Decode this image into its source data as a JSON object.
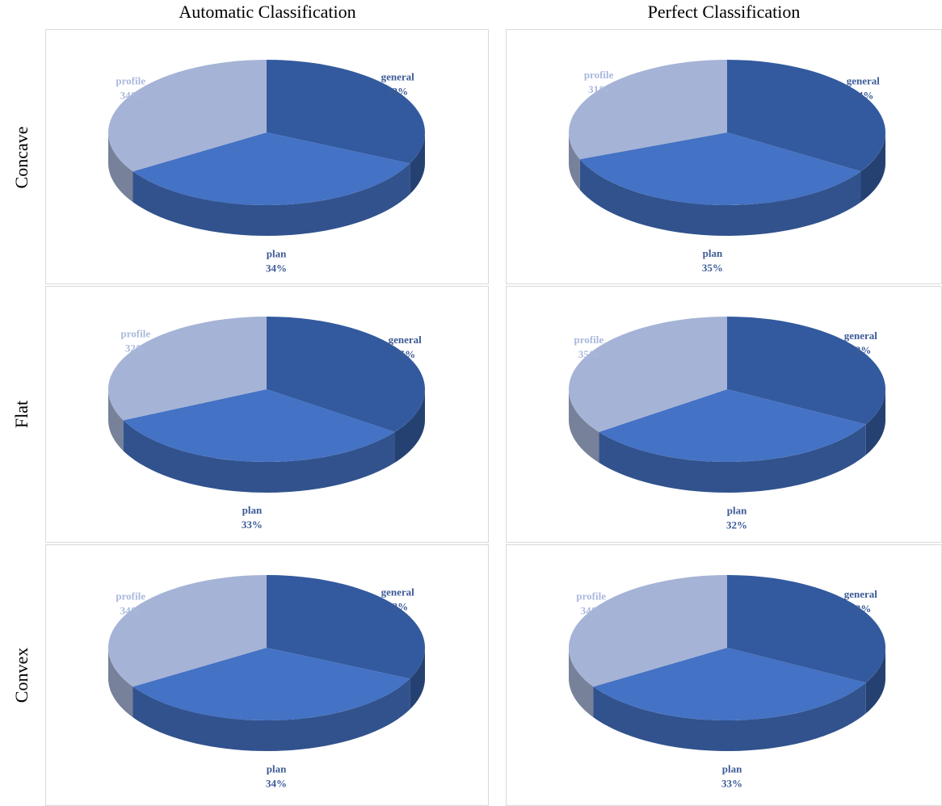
{
  "column_titles": [
    "Automatic Classification",
    "Perfect Classification"
  ],
  "row_labels": [
    "Concave",
    "Flat",
    "Convex"
  ],
  "chart_data": [
    {
      "type": "pie",
      "categories": [
        "general",
        "plan",
        "profile"
      ],
      "values": [
        32,
        34,
        34
      ],
      "value_labels": [
        "32%",
        "34%",
        "34%"
      ],
      "colors": [
        "#335a9e",
        "#4472c4",
        "#a5b3d6"
      ]
    },
    {
      "type": "pie",
      "categories": [
        "general",
        "plan",
        "profile"
      ],
      "values": [
        34,
        35,
        31
      ],
      "value_labels": [
        "34%",
        "35%",
        "31%"
      ],
      "colors": [
        "#335a9e",
        "#4472c4",
        "#a5b3d6"
      ]
    },
    {
      "type": "pie",
      "categories": [
        "general",
        "plan",
        "profile"
      ],
      "values": [
        35,
        33,
        32
      ],
      "value_labels": [
        "35%",
        "33%",
        "32%"
      ],
      "colors": [
        "#335a9e",
        "#4472c4",
        "#a5b3d6"
      ]
    },
    {
      "type": "pie",
      "categories": [
        "general",
        "plan",
        "profile"
      ],
      "values": [
        33,
        32,
        35
      ],
      "value_labels": [
        "33%",
        "32%",
        "35%"
      ],
      "colors": [
        "#335a9e",
        "#4472c4",
        "#a5b3d6"
      ]
    },
    {
      "type": "pie",
      "categories": [
        "general",
        "plan",
        "profile"
      ],
      "values": [
        32,
        34,
        34
      ],
      "value_labels": [
        "32%",
        "34%",
        "34%"
      ],
      "colors": [
        "#335a9e",
        "#4472c4",
        "#a5b3d6"
      ]
    },
    {
      "type": "pie",
      "categories": [
        "general",
        "plan",
        "profile"
      ],
      "values": [
        33,
        33,
        34
      ],
      "value_labels": [
        "33%",
        "33%",
        "34%"
      ],
      "colors": [
        "#335a9e",
        "#4472c4",
        "#a5b3d6"
      ]
    }
  ]
}
